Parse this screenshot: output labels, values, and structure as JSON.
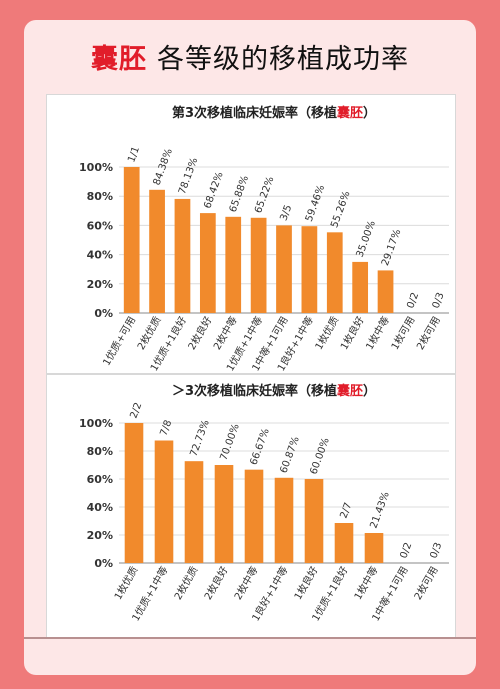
{
  "header": {
    "highlight": "囊胚",
    "rest": "各等级的移植成功率"
  },
  "colors": {
    "bar": "#f18a2c",
    "highlight": "#e11d2a",
    "text": "#222222"
  },
  "chart_data": [
    {
      "type": "bar",
      "title_prefix": "第3次移植临床妊娠率（移植",
      "title_highlight": "囊胚",
      "title_suffix": "）",
      "ylim": [
        0,
        100
      ],
      "yticks": [
        "0%",
        "20%",
        "40%",
        "60%",
        "80%",
        "100%"
      ],
      "grid": true,
      "categories": [
        "1优质+可用",
        "2枚优质",
        "1优质+1良好",
        "2枚良好",
        "2枚中等",
        "1优质+1中等",
        "1中等+1可用",
        "1良好+1中等",
        "1枚优质",
        "1枚良好",
        "1枚中等",
        "1枚可用",
        "2枚可用"
      ],
      "values": [
        100,
        84.38,
        78.13,
        68.42,
        65.88,
        65.22,
        60,
        59.46,
        55.26,
        35.0,
        29.17,
        0,
        0
      ],
      "labels": [
        "1/1",
        "84.38%",
        "78.13%",
        "68.42%",
        "65.88%",
        "65.22%",
        "3/5",
        "59.46%",
        "55.26%",
        "35.00%",
        "29.17%",
        "0/2",
        "0/3"
      ]
    },
    {
      "type": "bar",
      "title_prefix": "＞3次移植临床妊娠率（移植",
      "title_highlight": "囊胚",
      "title_suffix": "）",
      "ylim": [
        0,
        100
      ],
      "yticks": [
        "0%",
        "20%",
        "40%",
        "60%",
        "80%",
        "100%"
      ],
      "grid": true,
      "categories": [
        "1枚优质",
        "1优质+1中等",
        "2枚优质",
        "2枚良好",
        "2枚中等",
        "1良好+1中等",
        "1枚良好",
        "1优质+1良好",
        "1枚中等",
        "1中等+1可用",
        "2枚可用"
      ],
      "values": [
        100,
        87.5,
        72.73,
        70.0,
        66.67,
        60.87,
        60.0,
        28.57,
        21.43,
        0,
        0
      ],
      "labels": [
        "2/2",
        "7/8",
        "72.73%",
        "70.00%",
        "66.67%",
        "60.87%",
        "60.00%",
        "2/7",
        "21.43%",
        "0/2",
        "0/3"
      ]
    }
  ]
}
